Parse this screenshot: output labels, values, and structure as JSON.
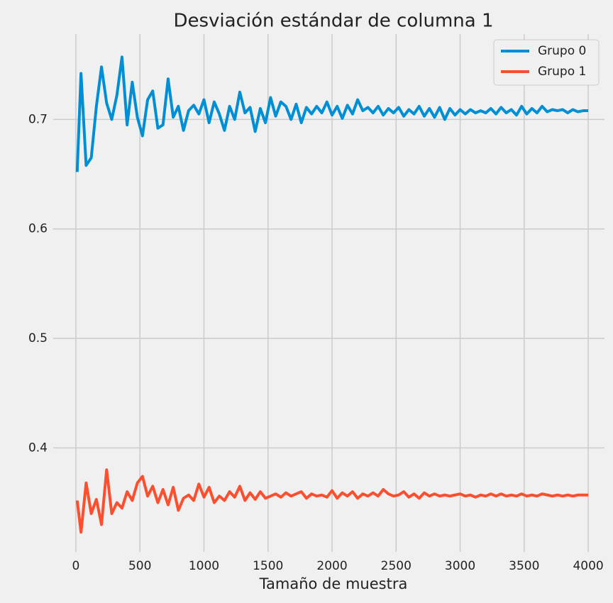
{
  "chart_data": {
    "type": "line",
    "title": "Desviación estándar de columna 1",
    "xlabel": "Tamaño de muestra",
    "x": [
      10,
      40,
      80,
      120,
      160,
      200,
      240,
      280,
      320,
      360,
      400,
      440,
      480,
      520,
      560,
      600,
      640,
      680,
      720,
      760,
      800,
      840,
      880,
      920,
      960,
      1000,
      1040,
      1080,
      1120,
      1160,
      1200,
      1240,
      1280,
      1320,
      1360,
      1400,
      1440,
      1480,
      1520,
      1560,
      1600,
      1640,
      1680,
      1720,
      1760,
      1800,
      1840,
      1880,
      1920,
      1960,
      2000,
      2040,
      2080,
      2120,
      2160,
      2200,
      2240,
      2280,
      2320,
      2360,
      2400,
      2440,
      2480,
      2520,
      2560,
      2600,
      2640,
      2680,
      2720,
      2760,
      2800,
      2840,
      2880,
      2920,
      2960,
      3000,
      3040,
      3080,
      3120,
      3160,
      3200,
      3240,
      3280,
      3320,
      3360,
      3400,
      3440,
      3480,
      3520,
      3560,
      3600,
      3640,
      3680,
      3720,
      3760,
      3800,
      3840,
      3880,
      3920,
      3960,
      4000
    ],
    "series": [
      {
        "name": "Grupo 0",
        "color": "#008fd5",
        "values": [
          0.652,
          0.742,
          0.658,
          0.665,
          0.712,
          0.748,
          0.715,
          0.7,
          0.722,
          0.757,
          0.695,
          0.734,
          0.702,
          0.685,
          0.718,
          0.726,
          0.692,
          0.695,
          0.737,
          0.702,
          0.712,
          0.69,
          0.708,
          0.713,
          0.705,
          0.718,
          0.697,
          0.716,
          0.705,
          0.69,
          0.712,
          0.7,
          0.725,
          0.706,
          0.711,
          0.689,
          0.71,
          0.697,
          0.72,
          0.703,
          0.716,
          0.712,
          0.7,
          0.714,
          0.697,
          0.711,
          0.705,
          0.712,
          0.706,
          0.716,
          0.704,
          0.712,
          0.701,
          0.713,
          0.705,
          0.718,
          0.708,
          0.711,
          0.706,
          0.712,
          0.704,
          0.71,
          0.706,
          0.711,
          0.703,
          0.709,
          0.705,
          0.712,
          0.703,
          0.71,
          0.702,
          0.711,
          0.7,
          0.71,
          0.704,
          0.709,
          0.705,
          0.709,
          0.706,
          0.708,
          0.706,
          0.71,
          0.705,
          0.711,
          0.706,
          0.709,
          0.704,
          0.712,
          0.705,
          0.71,
          0.706,
          0.712,
          0.707,
          0.709,
          0.708,
          0.709,
          0.706,
          0.709,
          0.707,
          0.708,
          0.708
        ]
      },
      {
        "name": "Grupo 1",
        "color": "#fc4f30",
        "values": [
          0.352,
          0.323,
          0.368,
          0.34,
          0.353,
          0.33,
          0.38,
          0.34,
          0.35,
          0.345,
          0.36,
          0.352,
          0.368,
          0.374,
          0.356,
          0.365,
          0.35,
          0.362,
          0.348,
          0.364,
          0.343,
          0.354,
          0.357,
          0.352,
          0.367,
          0.355,
          0.364,
          0.35,
          0.356,
          0.352,
          0.36,
          0.355,
          0.365,
          0.352,
          0.359,
          0.353,
          0.36,
          0.354,
          0.356,
          0.358,
          0.355,
          0.359,
          0.356,
          0.358,
          0.36,
          0.354,
          0.358,
          0.356,
          0.357,
          0.355,
          0.361,
          0.354,
          0.359,
          0.356,
          0.36,
          0.354,
          0.358,
          0.356,
          0.359,
          0.356,
          0.362,
          0.358,
          0.356,
          0.357,
          0.36,
          0.355,
          0.358,
          0.354,
          0.359,
          0.356,
          0.358,
          0.356,
          0.357,
          0.356,
          0.357,
          0.358,
          0.356,
          0.357,
          0.355,
          0.357,
          0.356,
          0.358,
          0.356,
          0.358,
          0.356,
          0.357,
          0.356,
          0.358,
          0.356,
          0.357,
          0.356,
          0.358,
          0.357,
          0.356,
          0.357,
          0.356,
          0.357,
          0.356,
          0.357,
          0.357,
          0.357
        ]
      }
    ],
    "xlim": [
      -177,
      4127
    ],
    "ylim": [
      0.305,
      0.778
    ],
    "xticks": [
      0,
      500,
      1000,
      1500,
      2000,
      2500,
      3000,
      3500,
      4000
    ],
    "yticks": [
      0.4,
      0.5,
      0.6,
      0.7
    ],
    "grid": true,
    "legend": "upper right"
  }
}
